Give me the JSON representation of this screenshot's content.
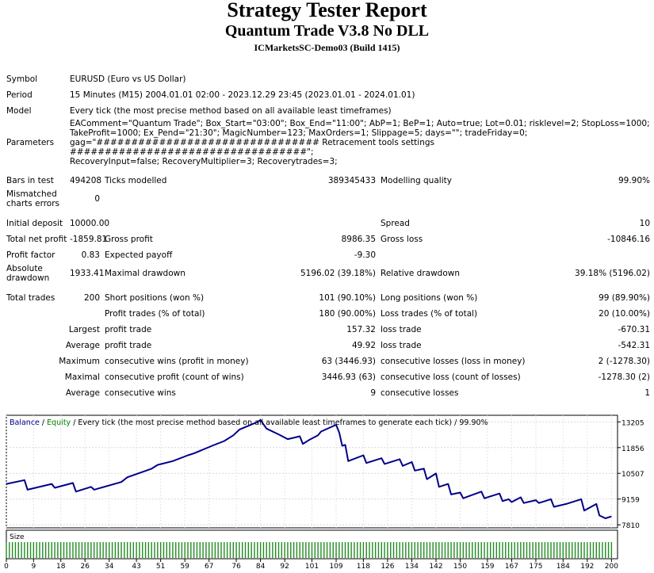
{
  "header": {
    "title": "Strategy Tester Report",
    "subtitle": "Quantum Trade V3.8 No DLL",
    "server": "ICMarketsSC-Demo03 (Build 1415)"
  },
  "info": {
    "symbol_label": "Symbol",
    "symbol": "EURUSD (Euro vs US Dollar)",
    "period_label": "Period",
    "period": "15 Minutes (M15) 2004.01.01 02:00 - 2023.12.29 23:45 (2023.01.01 - 2024.01.01)",
    "model_label": "Model",
    "model": "Every tick (the most precise method based on all available least timeframes)",
    "parameters_label": "Parameters",
    "parameters_lines": [
      "EAComment=\"Quantum Trade\"; Box_Start=\"03:00\"; Box_End=\"11:00\"; AbP=1; BeP=1; Auto=true; Lot=0.01; risklevel=2; StopLoss=1000;",
      "TakeProfit=1000; Ex_Pend=\"21:30\"; MagicNumber=123; MaxOrders=1; Slippage=5; days=\"\"; tradeFriday=0;",
      "gag=\"################################ Retracement tools settings ##################################\";",
      "RecoveryInput=false; RecoveryMultiplier=3; Recoverytrades=3;"
    ]
  },
  "stats": {
    "bars_label": "Bars in test",
    "bars": "494208",
    "ticks_label": "Ticks modelled",
    "ticks": "389345433",
    "quality_label": "Modelling quality",
    "quality": "99.90%",
    "mismatched_label_1": "Mismatched",
    "mismatched_label_2": "charts errors",
    "mismatched": "0",
    "deposit_label": "Initial deposit",
    "deposit": "10000.00",
    "spread_label": "Spread",
    "spread": "10",
    "net_label": "Total net profit",
    "net": "-1859.81",
    "gross_profit_label": "Gross profit",
    "gross_profit": "8986.35",
    "gross_loss_label": "Gross loss",
    "gross_loss": "-10846.16",
    "pf_label": "Profit factor",
    "pf": "0.83",
    "payoff_label": "Expected payoff",
    "payoff": "-9.30",
    "abs_dd_label_1": "Absolute",
    "abs_dd_label_2": "drawdown",
    "abs_dd": "1933.41",
    "max_dd_label": "Maximal drawdown",
    "max_dd": "5196.02 (39.18%)",
    "rel_dd_label": "Relative drawdown",
    "rel_dd": "39.18% (5196.02)",
    "trades_label": "Total trades",
    "trades": "200",
    "short_label": "Short positions (won %)",
    "short": "101 (90.10%)",
    "long_label": "Long positions (won %)",
    "long": "99 (89.90%)",
    "profit_trades_label": "Profit trades (% of total)",
    "profit_trades": "180 (90.00%)",
    "loss_trades_label": "Loss trades (% of total)",
    "loss_trades": "20 (10.00%)",
    "largest_label": "Largest",
    "largest_profit_label": "profit trade",
    "largest_profit": "157.32",
    "largest_loss_label": "loss trade",
    "largest_loss": "-670.31",
    "average_label": "Average",
    "average_profit_label": "profit trade",
    "average_profit": "49.92",
    "average_loss_label": "loss trade",
    "average_loss": "-542.31",
    "maximum_label": "Maximum",
    "max_cons_wins_label": "consecutive wins (profit in money)",
    "max_cons_wins": "63 (3446.93)",
    "max_cons_losses_label": "consecutive losses (loss in money)",
    "max_cons_losses": "2 (-1278.30)",
    "maximal_label": "Maximal",
    "maximal_profit_label": "consecutive profit (count of wins)",
    "maximal_profit": "3446.93 (63)",
    "maximal_loss_label": "consecutive loss (count of losses)",
    "maximal_loss": "-1278.30 (2)",
    "avg_cons_label": "Average",
    "avg_cons_wins_label": "consecutive wins",
    "avg_cons_wins": "9",
    "avg_cons_losses_label": "consecutive losses",
    "avg_cons_losses": "1"
  },
  "chart_data": {
    "type": "line",
    "legend": {
      "balance": "Balance",
      "equity": "Equity",
      "rest": " / Every tick (the most precise method based on all available least timeframes to generate each tick) / 99.90%"
    },
    "size_label": "Size",
    "x_ticks": [
      0,
      9,
      18,
      26,
      34,
      43,
      51,
      59,
      67,
      76,
      84,
      92,
      101,
      109,
      118,
      126,
      134,
      142,
      150,
      159,
      167,
      175,
      184,
      192,
      200
    ],
    "y_ticks": [
      13205,
      11856,
      10507,
      9159,
      7810
    ],
    "xlim": [
      0,
      202
    ],
    "ylim": [
      7650,
      13550
    ],
    "balance_color": "#00008b",
    "equity_color": "#008000",
    "size_color": "#228b22",
    "balance": [
      [
        0,
        9950
      ],
      [
        6,
        10150
      ],
      [
        7,
        9650
      ],
      [
        15,
        9950
      ],
      [
        16,
        9750
      ],
      [
        22,
        10000
      ],
      [
        23,
        9550
      ],
      [
        28,
        9800
      ],
      [
        29,
        9650
      ],
      [
        38,
        10050
      ],
      [
        40,
        10300
      ],
      [
        48,
        10750
      ],
      [
        50,
        10950
      ],
      [
        55,
        11150
      ],
      [
        60,
        11450
      ],
      [
        62,
        11550
      ],
      [
        68,
        11950
      ],
      [
        72,
        12200
      ],
      [
        75,
        12500
      ],
      [
        77,
        12800
      ],
      [
        83,
        13200
      ],
      [
        84,
        13300
      ],
      [
        86,
        12850
      ],
      [
        90,
        12550
      ],
      [
        93,
        12300
      ],
      [
        97,
        12450
      ],
      [
        98,
        12050
      ],
      [
        100,
        12250
      ],
      [
        103,
        12500
      ],
      [
        104,
        12700
      ],
      [
        109,
        13050
      ],
      [
        110,
        12650
      ],
      [
        111,
        11950
      ],
      [
        112,
        12000
      ],
      [
        113,
        11150
      ],
      [
        118,
        11450
      ],
      [
        119,
        11050
      ],
      [
        124,
        11300
      ],
      [
        125,
        11000
      ],
      [
        130,
        11250
      ],
      [
        131,
        10900
      ],
      [
        134,
        11100
      ],
      [
        135,
        10650
      ],
      [
        138,
        10750
      ],
      [
        139,
        10200
      ],
      [
        142,
        10500
      ],
      [
        143,
        9800
      ],
      [
        146,
        9950
      ],
      [
        147,
        9400
      ],
      [
        150,
        9500
      ],
      [
        151,
        9200
      ],
      [
        157,
        9550
      ],
      [
        158,
        9200
      ],
      [
        163,
        9450
      ],
      [
        164,
        9050
      ],
      [
        166,
        9150
      ],
      [
        167,
        9000
      ],
      [
        170,
        9250
      ],
      [
        171,
        8950
      ],
      [
        175,
        9100
      ],
      [
        176,
        8950
      ],
      [
        180,
        9150
      ],
      [
        181,
        8750
      ],
      [
        185,
        8900
      ],
      [
        190,
        9150
      ],
      [
        191,
        8550
      ],
      [
        195,
        8900
      ],
      [
        196,
        8300
      ],
      [
        198,
        8150
      ],
      [
        200,
        8250
      ]
    ]
  }
}
